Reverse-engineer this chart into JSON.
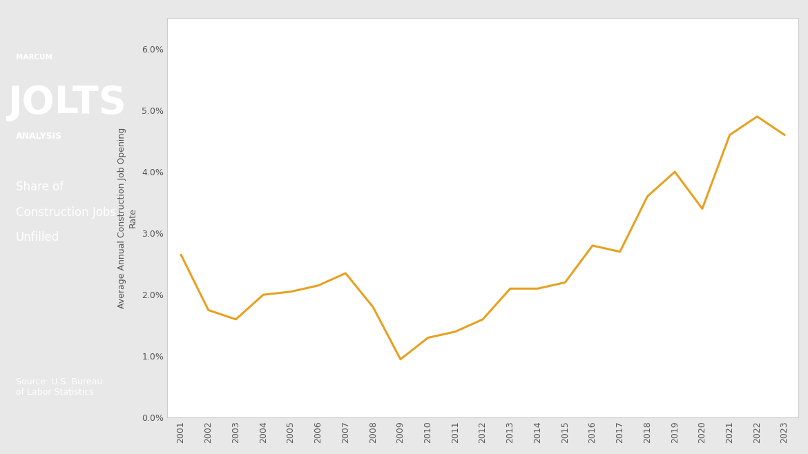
{
  "years": [
    2001,
    2002,
    2003,
    2004,
    2005,
    2006,
    2007,
    2008,
    2009,
    2010,
    2011,
    2012,
    2013,
    2014,
    2015,
    2016,
    2017,
    2018,
    2019,
    2020,
    2021,
    2022,
    2023
  ],
  "values": [
    0.0265,
    0.0175,
    0.016,
    0.02,
    0.0205,
    0.0215,
    0.0235,
    0.018,
    0.0095,
    0.013,
    0.014,
    0.016,
    0.021,
    0.021,
    0.022,
    0.028,
    0.027,
    0.036,
    0.04,
    0.034,
    0.046,
    0.049,
    0.046
  ],
  "line_color": "#E8A020",
  "line_width": 2.2,
  "ylabel": "Average Annual Construction Job Opening\nRate",
  "ylim": [
    0,
    0.065
  ],
  "yticks": [
    0.0,
    0.01,
    0.02,
    0.03,
    0.04,
    0.05,
    0.06
  ],
  "ytick_labels": [
    "0.0%",
    "1.0%",
    "2.0%",
    "3.0%",
    "4.0%",
    "5.0%",
    "6.0%"
  ],
  "panel_bg": "#4B5568",
  "panel_title_line1": "Share of",
  "panel_title_line2": "Construction Jobs",
  "panel_title_line3": "Unfilled",
  "panel_source": "Source: U.S. Bureau\nof Labor Statistics",
  "marcum_text": "MARCUM",
  "jolts_text": "JOLTS",
  "analysis_text": "ANALYSIS",
  "chart_bg": "#ffffff",
  "border_color": "#cccccc",
  "outer_bg": "#e8e8e8"
}
